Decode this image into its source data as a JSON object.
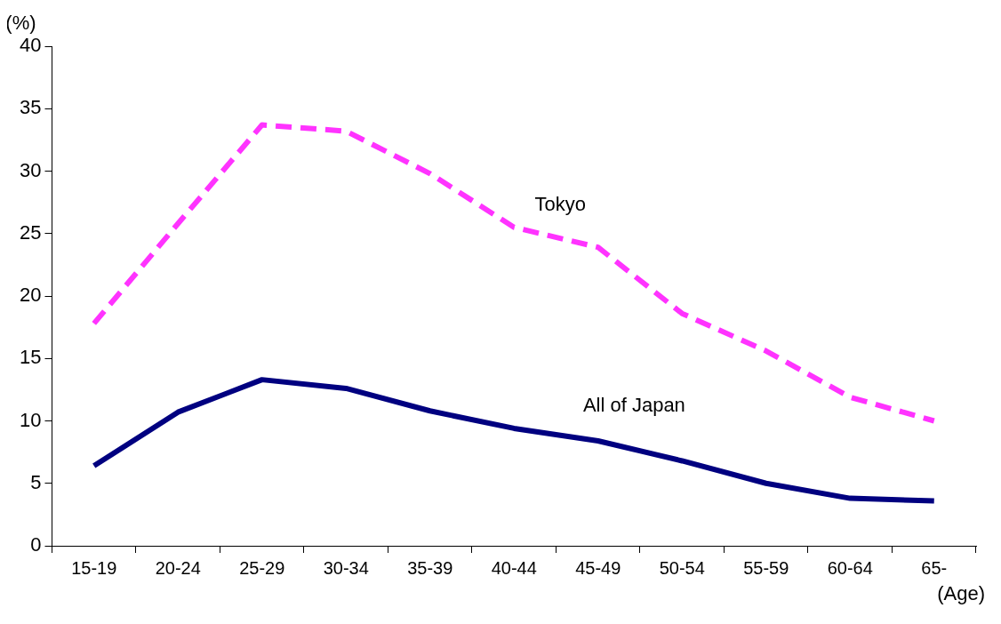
{
  "chart_data": {
    "type": "line",
    "xlabel": "(Age)",
    "ylabel": "(%)",
    "categories": [
      "15-19",
      "20-24",
      "25-29",
      "30-34",
      "35-39",
      "40-44",
      "45-49",
      "50-54",
      "55-59",
      "60-64",
      "65-"
    ],
    "series": [
      {
        "name": "Tokyo",
        "color": "#ff33ff",
        "line_style": "dashed",
        "values": [
          17.8,
          25.8,
          33.7,
          33.2,
          29.8,
          25.5,
          23.9,
          18.6,
          15.6,
          11.9,
          10.0
        ]
      },
      {
        "name": "All of Japan",
        "color": "#000080",
        "line_style": "solid",
        "values": [
          6.4,
          10.7,
          13.3,
          12.6,
          10.8,
          9.4,
          8.4,
          6.8,
          5.0,
          3.8,
          3.6
        ]
      }
    ],
    "ylim": [
      0,
      40
    ],
    "yticks": [
      0,
      5,
      10,
      15,
      20,
      25,
      30,
      35,
      40
    ],
    "grid": false,
    "legend": false,
    "marker": "none"
  }
}
